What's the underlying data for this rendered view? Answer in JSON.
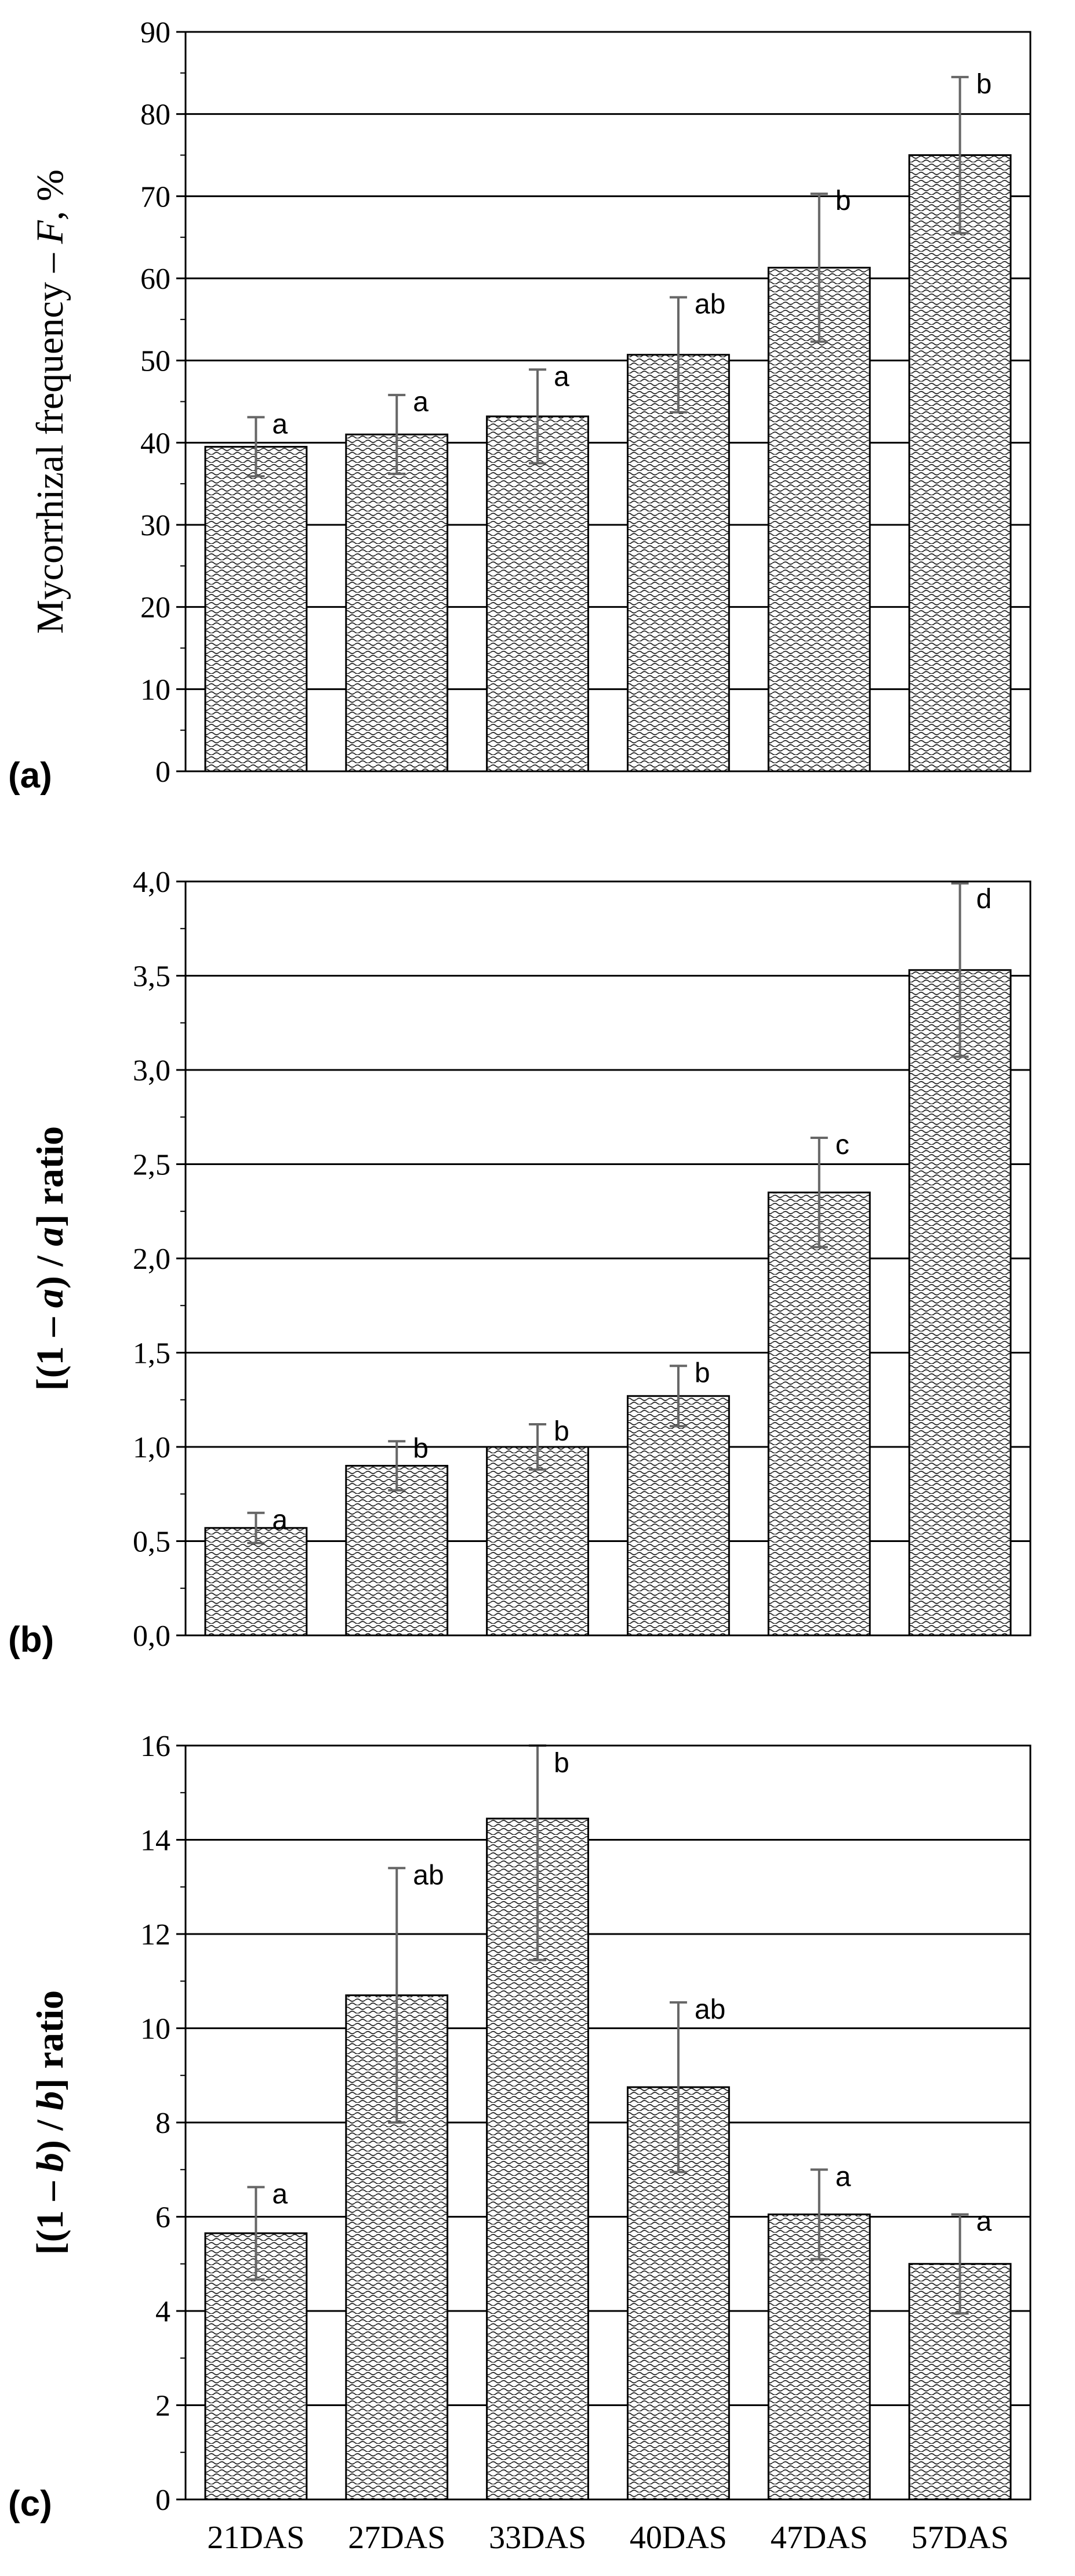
{
  "chart_data": [
    {
      "type": "bar",
      "panel_label": "(a)",
      "ylabel_parts": [
        "Mycorrhizal frequency – ",
        "F",
        ", %"
      ],
      "categories": [
        "21DAS",
        "27DAS",
        "33DAS",
        "40DAS",
        "47DAS",
        "57DAS"
      ],
      "values": [
        39.5,
        41.0,
        43.2,
        50.7,
        61.3,
        75.0
      ],
      "errors": [
        3.6,
        4.8,
        5.7,
        7.0,
        9.0,
        9.5
      ],
      "letters": [
        "a",
        "a",
        "a",
        "ab",
        "b",
        "b"
      ],
      "ylim": [
        0,
        90
      ],
      "yticks": [
        0,
        10,
        20,
        30,
        40,
        50,
        60,
        70,
        80,
        90
      ],
      "ytick_labels": [
        "0",
        "10",
        "20",
        "30",
        "40",
        "50",
        "60",
        "70",
        "80",
        "90"
      ],
      "grid": true
    },
    {
      "type": "bar",
      "panel_label": "(b)",
      "ylabel_parts": [
        "[(1 – ",
        "a",
        ") / ",
        "a",
        "] ratio"
      ],
      "categories": [
        "21DAS",
        "27DAS",
        "33DAS",
        "40DAS",
        "47DAS",
        "57DAS"
      ],
      "values": [
        0.57,
        0.9,
        1.0,
        1.27,
        2.35,
        3.53
      ],
      "errors": [
        0.08,
        0.13,
        0.12,
        0.16,
        0.29,
        0.46
      ],
      "letters": [
        "a",
        "b",
        "b",
        "b",
        "c",
        "d"
      ],
      "ylim": [
        0,
        4
      ],
      "yticks": [
        0,
        0.5,
        1,
        1.5,
        2,
        2.5,
        3,
        3.5,
        4
      ],
      "ytick_labels": [
        "0,0",
        "0,5",
        "1,0",
        "1,5",
        "2,0",
        "2,5",
        "3,0",
        "3,5",
        "4,0"
      ],
      "grid": true
    },
    {
      "type": "bar",
      "panel_label": "(c)",
      "ylabel_parts": [
        "[(1 – ",
        "b",
        ") / ",
        "b",
        "] ratio"
      ],
      "categories": [
        "21DAS",
        "27DAS",
        "33DAS",
        "40DAS",
        "47DAS",
        "57DAS"
      ],
      "values": [
        5.65,
        10.7,
        14.45,
        8.75,
        6.05,
        5.0
      ],
      "errors": [
        0.98,
        2.7,
        3.0,
        1.8,
        0.95,
        1.05
      ],
      "letters": [
        "a",
        "ab",
        "b",
        "ab",
        "a",
        "a"
      ],
      "ylim": [
        0,
        16
      ],
      "yticks": [
        0,
        2,
        4,
        6,
        8,
        10,
        12,
        14,
        16
      ],
      "ytick_labels": [
        "0",
        "2",
        "4",
        "6",
        "8",
        "10",
        "12",
        "14",
        "16"
      ],
      "grid": true
    }
  ]
}
